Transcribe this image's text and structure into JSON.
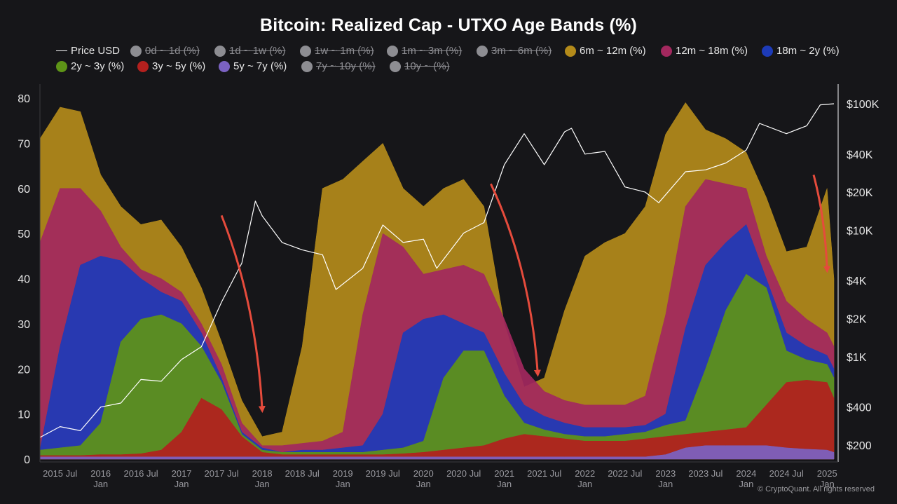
{
  "title": "Bitcoin: Realized Cap - UTXO Age Bands (%)",
  "credit": "© CryptoQuant. All rights reserved",
  "legend": [
    {
      "label": "Price USD",
      "color": "#ffffff",
      "kind": "line",
      "active": true
    },
    {
      "label": "0d ~ 1d (%)",
      "color": "#8d8d92",
      "kind": "dot",
      "active": false
    },
    {
      "label": "1d ~ 1w (%)",
      "color": "#8d8d92",
      "kind": "dot",
      "active": false
    },
    {
      "label": "1w ~ 1m (%)",
      "color": "#8d8d92",
      "kind": "dot",
      "active": false
    },
    {
      "label": "1m ~ 3m (%)",
      "color": "#8d8d92",
      "kind": "dot",
      "active": false
    },
    {
      "label": "3m ~ 6m (%)",
      "color": "#8d8d92",
      "kind": "dot",
      "active": false
    },
    {
      "label": "6m ~ 12m (%)",
      "color": "#b48b1a",
      "kind": "dot",
      "active": true
    },
    {
      "label": "12m ~ 18m (%)",
      "color": "#a3285e",
      "kind": "dot",
      "active": true
    },
    {
      "label": "18m ~ 2y (%)",
      "color": "#1d3bb8",
      "kind": "dot",
      "active": true
    },
    {
      "label": "2y ~ 3y (%)",
      "color": "#5e9417",
      "kind": "dot",
      "active": true
    },
    {
      "label": "3y ~ 5y (%)",
      "color": "#b3201e",
      "kind": "dot",
      "active": true
    },
    {
      "label": "5y ~ 7y (%)",
      "color": "#7b62c2",
      "kind": "dot",
      "active": true
    },
    {
      "label": "7y ~ 10y (%)",
      "color": "#8d8d92",
      "kind": "dot",
      "active": false
    },
    {
      "label": "10y ~ (%)",
      "color": "#8d8d92",
      "kind": "dot",
      "active": false
    }
  ],
  "chart_data": {
    "type": "area",
    "stacked": true,
    "x_range": [
      "2015-04-01",
      "2025-02-01"
    ],
    "ylim_left": [
      0,
      80
    ],
    "left_ticks": [
      "0",
      "10",
      "20",
      "30",
      "40",
      "50",
      "60",
      "70",
      "80"
    ],
    "right_axis": {
      "scale": "log",
      "ticks": [
        "$200",
        "$400",
        "$1K",
        "$2K",
        "$4K",
        "$10K",
        "$20K",
        "$40K",
        "$100K"
      ],
      "values": [
        200,
        400,
        1000,
        2000,
        4000,
        10000,
        20000,
        40000,
        100000
      ]
    },
    "x_ticks": [
      {
        "label": "2015 Jul",
        "sub": "",
        "date": "2015-07-01"
      },
      {
        "label": "2016",
        "sub": "Jan",
        "date": "2016-01-01"
      },
      {
        "label": "2016 Jul",
        "sub": "",
        "date": "2016-07-01"
      },
      {
        "label": "2017",
        "sub": "Jan",
        "date": "2017-01-01"
      },
      {
        "label": "2017 Jul",
        "sub": "",
        "date": "2017-07-01"
      },
      {
        "label": "2018",
        "sub": "Jan",
        "date": "2018-01-01"
      },
      {
        "label": "2018 Jul",
        "sub": "",
        "date": "2018-07-01"
      },
      {
        "label": "2019",
        "sub": "Jan",
        "date": "2019-01-01"
      },
      {
        "label": "2019 Jul",
        "sub": "",
        "date": "2019-07-01"
      },
      {
        "label": "2020",
        "sub": "Jan",
        "date": "2020-01-01"
      },
      {
        "label": "2020 Jul",
        "sub": "",
        "date": "2020-07-01"
      },
      {
        "label": "2021",
        "sub": "Jan",
        "date": "2021-01-01"
      },
      {
        "label": "2021 Jul",
        "sub": "",
        "date": "2021-07-01"
      },
      {
        "label": "2022",
        "sub": "Jan",
        "date": "2022-01-01"
      },
      {
        "label": "2022 Jul",
        "sub": "",
        "date": "2022-07-01"
      },
      {
        "label": "2023",
        "sub": "Jan",
        "date": "2023-01-01"
      },
      {
        "label": "2023 Jul",
        "sub": "",
        "date": "2023-07-01"
      },
      {
        "label": "2024",
        "sub": "Jan",
        "date": "2024-01-01"
      },
      {
        "label": "2024 Jul",
        "sub": "",
        "date": "2024-07-01"
      },
      {
        "label": "2025",
        "sub": "Jan",
        "date": "2025-01-01"
      }
    ],
    "dates": [
      "2015-04",
      "2015-07",
      "2015-10",
      "2016-01",
      "2016-04",
      "2016-07",
      "2016-10",
      "2017-01",
      "2017-04",
      "2017-07",
      "2017-10",
      "2018-01",
      "2018-04",
      "2018-07",
      "2018-10",
      "2019-01",
      "2019-04",
      "2019-07",
      "2019-10",
      "2020-01",
      "2020-04",
      "2020-07",
      "2020-10",
      "2021-01",
      "2021-04",
      "2021-07",
      "2021-10",
      "2022-01",
      "2022-04",
      "2022-07",
      "2022-10",
      "2023-01",
      "2023-04",
      "2023-07",
      "2023-10",
      "2024-01",
      "2024-04",
      "2024-07",
      "2024-10",
      "2025-01",
      "2025-02"
    ],
    "series": [
      {
        "name": "5y ~ 7y (%)",
        "color": "#7b62c2",
        "cumulative": [
          0.5,
          0.5,
          0.5,
          0.5,
          0.5,
          0.5,
          0.5,
          0.5,
          0.5,
          0.5,
          0.5,
          0.5,
          0.5,
          0.5,
          0.5,
          0.5,
          0.5,
          0.5,
          0.5,
          0.5,
          0.5,
          0.5,
          0.5,
          0.5,
          0.5,
          0.5,
          0.5,
          0.5,
          0.5,
          0.5,
          0.5,
          1.0,
          2.5,
          3.0,
          3.0,
          3.0,
          3.0,
          2.5,
          2.2,
          2.0,
          1.5
        ]
      },
      {
        "name": "3y ~ 5y (%)",
        "color": "#b3201e",
        "cumulative": [
          0.8,
          0.8,
          0.8,
          1.0,
          1.0,
          1.2,
          2.0,
          6.0,
          13.5,
          11.0,
          5.0,
          1.5,
          1.0,
          1.0,
          1.0,
          1.0,
          1.0,
          1.0,
          1.2,
          1.5,
          2.0,
          2.5,
          3.0,
          4.5,
          5.5,
          5.0,
          4.5,
          4.0,
          4.0,
          4.0,
          4.5,
          5.0,
          5.5,
          6.0,
          6.5,
          7.0,
          12.0,
          17.0,
          17.5,
          17.0,
          13.5
        ]
      },
      {
        "name": "2y ~ 3y (%)",
        "color": "#5e9417",
        "cumulative": [
          2.0,
          2.5,
          3.0,
          8.0,
          26.0,
          31.0,
          32.0,
          30.0,
          25.0,
          17.0,
          5.5,
          2.0,
          1.5,
          1.5,
          1.5,
          1.5,
          1.5,
          2.0,
          2.5,
          4.0,
          18.0,
          24.0,
          24.0,
          14.0,
          8.0,
          6.5,
          5.5,
          5.0,
          5.0,
          5.5,
          6.0,
          7.5,
          8.5,
          20.0,
          33.0,
          41.0,
          38.0,
          24.0,
          22.0,
          21.0,
          18.0
        ]
      },
      {
        "name": "18m ~ 2y (%)",
        "color": "#1d3bb8",
        "cumulative": [
          2.0,
          25.0,
          43.0,
          45.0,
          44.0,
          40.0,
          37.0,
          35.0,
          28.0,
          18.0,
          6.0,
          2.5,
          1.5,
          2.0,
          2.0,
          2.5,
          3.0,
          10.0,
          28.0,
          31.0,
          32.0,
          30.0,
          28.0,
          19.0,
          12.0,
          9.5,
          8.0,
          7.0,
          7.0,
          7.0,
          7.5,
          10.0,
          29.0,
          43.0,
          48.0,
          52.0,
          40.0,
          28.0,
          25.0,
          23.0,
          20.0
        ]
      },
      {
        "name": "12m ~ 18m (%)",
        "color": "#a3285e",
        "cumulative": [
          48.0,
          60.0,
          60.0,
          55.0,
          47.0,
          42.0,
          40.0,
          37.0,
          30.0,
          21.0,
          8.0,
          3.0,
          3.0,
          3.5,
          4.0,
          6.0,
          32.0,
          50.0,
          47.0,
          41.0,
          42.0,
          43.0,
          41.0,
          31.0,
          20.0,
          15.0,
          13.0,
          12.0,
          12.0,
          12.0,
          14.0,
          32.0,
          56.0,
          62.0,
          61.0,
          60.0,
          45.0,
          35.0,
          31.0,
          28.0,
          25.0
        ]
      },
      {
        "name": "6m ~ 12m (%)",
        "color": "#b48b1a",
        "cumulative": [
          71.0,
          78.0,
          77.0,
          63.0,
          56.0,
          52.0,
          53.0,
          47.0,
          38.0,
          26.0,
          13.0,
          5.0,
          6.0,
          25.0,
          60.0,
          62.0,
          66.0,
          70.0,
          60.0,
          56.0,
          60.0,
          62.0,
          56.0,
          30.0,
          16.0,
          18.0,
          33.0,
          45.0,
          48.0,
          50.0,
          56.0,
          72.0,
          79.0,
          73.0,
          71.0,
          68.0,
          58.0,
          46.0,
          47.0,
          60.0,
          40.0
        ]
      }
    ],
    "price_usd": [
      {
        "date": "2015-04",
        "value": 230
      },
      {
        "date": "2015-07",
        "value": 280
      },
      {
        "date": "2015-10",
        "value": 260
      },
      {
        "date": "2016-01",
        "value": 400
      },
      {
        "date": "2016-04",
        "value": 430
      },
      {
        "date": "2016-07",
        "value": 660
      },
      {
        "date": "2016-10",
        "value": 640
      },
      {
        "date": "2017-01",
        "value": 950
      },
      {
        "date": "2017-04",
        "value": 1200
      },
      {
        "date": "2017-07",
        "value": 2700
      },
      {
        "date": "2017-10",
        "value": 5500
      },
      {
        "date": "2017-12",
        "value": 17000
      },
      {
        "date": "2018-01",
        "value": 13000
      },
      {
        "date": "2018-04",
        "value": 8000
      },
      {
        "date": "2018-07",
        "value": 7000
      },
      {
        "date": "2018-10",
        "value": 6400
      },
      {
        "date": "2018-12",
        "value": 3400
      },
      {
        "date": "2019-04",
        "value": 5000
      },
      {
        "date": "2019-07",
        "value": 11000
      },
      {
        "date": "2019-10",
        "value": 8000
      },
      {
        "date": "2020-01",
        "value": 8500
      },
      {
        "date": "2020-03",
        "value": 5000
      },
      {
        "date": "2020-07",
        "value": 9500
      },
      {
        "date": "2020-10",
        "value": 11500
      },
      {
        "date": "2021-01",
        "value": 33000
      },
      {
        "date": "2021-04",
        "value": 58000
      },
      {
        "date": "2021-07",
        "value": 33000
      },
      {
        "date": "2021-10",
        "value": 60000
      },
      {
        "date": "2021-11",
        "value": 64000
      },
      {
        "date": "2022-01",
        "value": 40000
      },
      {
        "date": "2022-04",
        "value": 42000
      },
      {
        "date": "2022-07",
        "value": 22000
      },
      {
        "date": "2022-10",
        "value": 20000
      },
      {
        "date": "2022-12",
        "value": 16500
      },
      {
        "date": "2023-04",
        "value": 29000
      },
      {
        "date": "2023-07",
        "value": 30000
      },
      {
        "date": "2023-10",
        "value": 34000
      },
      {
        "date": "2024-01",
        "value": 43000
      },
      {
        "date": "2024-03",
        "value": 70000
      },
      {
        "date": "2024-07",
        "value": 58000
      },
      {
        "date": "2024-10",
        "value": 67000
      },
      {
        "date": "2024-12",
        "value": 98000
      },
      {
        "date": "2025-02",
        "value": 100000
      }
    ],
    "annotations": [
      {
        "type": "arrow",
        "color": "#e54b3c",
        "from": {
          "date": "2017-07",
          "y": 54
        },
        "to": {
          "date": "2018-01",
          "y": 11
        }
      },
      {
        "type": "arrow",
        "color": "#e54b3c",
        "from": {
          "date": "2020-11",
          "y": 61
        },
        "to": {
          "date": "2021-06",
          "y": 19
        }
      },
      {
        "type": "arrow",
        "color": "#e54b3c",
        "from": {
          "date": "2024-11",
          "y": 63
        },
        "to": {
          "date": "2025-01",
          "y": 42
        }
      }
    ],
    "grid": false
  }
}
